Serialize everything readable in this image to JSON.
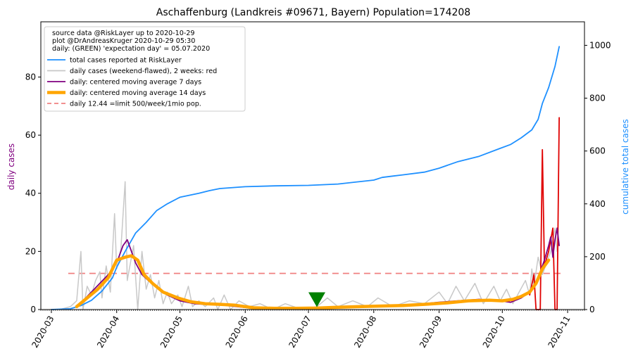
{
  "chart_data": {
    "type": "line",
    "title": "Aschaffenburg (Landkreis #09671, Bayern) Population=174208",
    "ylabel_left": "daily cases",
    "ylabel_right": "cumulative total cases",
    "ylabel_left_color": "#800080",
    "ylabel_right_color": "#1e90ff",
    "x_range": [
      "2020-02-25",
      "2020-11-09"
    ],
    "ylim_left": [
      0,
      99
    ],
    "ylim_right": [
      0,
      1089
    ],
    "yticks_left": [
      0,
      20,
      40,
      60,
      80
    ],
    "yticks_right": [
      0,
      200,
      400,
      600,
      800,
      1000
    ],
    "xticks": [
      "2020-03",
      "2020-04",
      "2020-05",
      "2020-06",
      "2020-07",
      "2020-08",
      "2020-09",
      "2020-10",
      "2020-11"
    ],
    "legend": {
      "position": "upper-left",
      "header": [
        "source data @RiskLayer up to 2020-10-29",
        "plot @DrAndreasKruger 2020-10-29 05:30",
        "daily: (GREEN) 'expectation day' = 05.07.2020"
      ],
      "entries": [
        {
          "label": "total cases reported at RiskLayer",
          "color": "#1e90ff",
          "style": "line"
        },
        {
          "label": "daily cases (weekend-flawed), 2 weeks: red",
          "color": "#c8c8c8",
          "style": "line"
        },
        {
          "label": "daily: centered moving average 7 days",
          "color": "#800080",
          "style": "line"
        },
        {
          "label": "daily: centered moving average 14 days",
          "color": "#ffa500",
          "style": "thick-line"
        },
        {
          "label": "daily 12.44 =limit 500/week/1mio pop.",
          "color": "#f08080",
          "style": "dashed"
        }
      ]
    },
    "limit_line": {
      "value": 12.44,
      "x_start": "2020-03-09",
      "x_end": "2020-10-29",
      "color": "#f08080"
    },
    "expectation_marker": {
      "date": "2020-07-05",
      "value": 3.5,
      "color": "#008000"
    },
    "series": [
      {
        "name": "total cases reported at RiskLayer",
        "axis": "right",
        "color": "#1e90ff",
        "points": [
          [
            "2020-03-01",
            0
          ],
          [
            "2020-03-10",
            3
          ],
          [
            "2020-03-15",
            15
          ],
          [
            "2020-03-20",
            35
          ],
          [
            "2020-03-25",
            70
          ],
          [
            "2020-03-30",
            120
          ],
          [
            "2020-04-01",
            160
          ],
          [
            "2020-04-05",
            220
          ],
          [
            "2020-04-10",
            290
          ],
          [
            "2020-04-15",
            330
          ],
          [
            "2020-04-20",
            375
          ],
          [
            "2020-04-25",
            400
          ],
          [
            "2020-05-01",
            425
          ],
          [
            "2020-05-10",
            440
          ],
          [
            "2020-05-15",
            450
          ],
          [
            "2020-05-20",
            458
          ],
          [
            "2020-06-01",
            465
          ],
          [
            "2020-06-15",
            468
          ],
          [
            "2020-07-01",
            470
          ],
          [
            "2020-07-15",
            475
          ],
          [
            "2020-08-01",
            490
          ],
          [
            "2020-08-05",
            500
          ],
          [
            "2020-08-10",
            505
          ],
          [
            "2020-08-15",
            510
          ],
          [
            "2020-08-25",
            520
          ],
          [
            "2020-09-01",
            535
          ],
          [
            "2020-09-10",
            560
          ],
          [
            "2020-09-20",
            580
          ],
          [
            "2020-09-30",
            610
          ],
          [
            "2020-10-05",
            625
          ],
          [
            "2020-10-10",
            650
          ],
          [
            "2020-10-15",
            680
          ],
          [
            "2020-10-18",
            720
          ],
          [
            "2020-10-20",
            780
          ],
          [
            "2020-10-23",
            840
          ],
          [
            "2020-10-26",
            920
          ],
          [
            "2020-10-28",
            995
          ]
        ]
      },
      {
        "name": "daily cases (weekend-flawed), 2 weeks: red",
        "axis": "left",
        "color": "#c8c8c8",
        "points": [
          [
            "2020-03-05",
            0
          ],
          [
            "2020-03-10",
            1
          ],
          [
            "2020-03-13",
            3
          ],
          [
            "2020-03-15",
            20
          ],
          [
            "2020-03-16",
            0
          ],
          [
            "2020-03-18",
            8
          ],
          [
            "2020-03-20",
            5
          ],
          [
            "2020-03-22",
            10
          ],
          [
            "2020-03-24",
            13
          ],
          [
            "2020-03-25",
            4
          ],
          [
            "2020-03-27",
            15
          ],
          [
            "2020-03-29",
            6
          ],
          [
            "2020-03-31",
            33
          ],
          [
            "2020-04-01",
            14
          ],
          [
            "2020-04-03",
            21
          ],
          [
            "2020-04-05",
            44
          ],
          [
            "2020-04-06",
            10
          ],
          [
            "2020-04-08",
            18
          ],
          [
            "2020-04-09",
            22
          ],
          [
            "2020-04-11",
            0
          ],
          [
            "2020-04-13",
            20
          ],
          [
            "2020-04-15",
            7
          ],
          [
            "2020-04-17",
            12
          ],
          [
            "2020-04-19",
            4
          ],
          [
            "2020-04-21",
            10
          ],
          [
            "2020-04-23",
            2
          ],
          [
            "2020-04-25",
            6
          ],
          [
            "2020-04-27",
            2
          ],
          [
            "2020-04-30",
            5
          ],
          [
            "2020-05-02",
            1
          ],
          [
            "2020-05-05",
            8
          ],
          [
            "2020-05-07",
            1
          ],
          [
            "2020-05-10",
            3
          ],
          [
            "2020-05-13",
            1
          ],
          [
            "2020-05-17",
            4
          ],
          [
            "2020-05-19",
            0
          ],
          [
            "2020-05-22",
            5
          ],
          [
            "2020-05-25",
            0
          ],
          [
            "2020-05-29",
            3
          ],
          [
            "2020-06-03",
            1
          ],
          [
            "2020-06-08",
            2
          ],
          [
            "2020-06-14",
            0
          ],
          [
            "2020-06-20",
            2
          ],
          [
            "2020-06-28",
            0
          ],
          [
            "2020-07-05",
            1
          ],
          [
            "2020-07-10",
            4
          ],
          [
            "2020-07-15",
            1
          ],
          [
            "2020-07-22",
            3
          ],
          [
            "2020-07-29",
            1
          ],
          [
            "2020-08-03",
            4
          ],
          [
            "2020-08-10",
            1
          ],
          [
            "2020-08-18",
            3
          ],
          [
            "2020-08-25",
            2
          ],
          [
            "2020-09-01",
            6
          ],
          [
            "2020-09-05",
            2
          ],
          [
            "2020-09-09",
            8
          ],
          [
            "2020-09-13",
            3
          ],
          [
            "2020-09-18",
            9
          ],
          [
            "2020-09-22",
            2
          ],
          [
            "2020-09-27",
            8
          ],
          [
            "2020-09-30",
            3
          ],
          [
            "2020-10-03",
            7
          ],
          [
            "2020-10-06",
            2
          ],
          [
            "2020-10-09",
            6
          ],
          [
            "2020-10-12",
            10
          ],
          [
            "2020-10-14",
            5
          ],
          [
            "2020-10-15",
            14
          ],
          [
            "2020-10-16",
            8
          ],
          [
            "2020-10-18",
            18
          ],
          [
            "2020-10-20",
            12
          ],
          [
            "2020-10-22",
            16
          ],
          [
            "2020-10-24",
            20
          ],
          [
            "2020-10-26",
            28
          ],
          [
            "2020-10-27",
            20
          ]
        ]
      },
      {
        "name": "daily cases, last 2 weeks",
        "axis": "left",
        "color": "#e00000",
        "points": [
          [
            "2020-10-14",
            5
          ],
          [
            "2020-10-16",
            12
          ],
          [
            "2020-10-17",
            0
          ],
          [
            "2020-10-19",
            0
          ],
          [
            "2020-10-20",
            55
          ],
          [
            "2020-10-21",
            15
          ],
          [
            "2020-10-23",
            20
          ],
          [
            "2020-10-25",
            28
          ],
          [
            "2020-10-26",
            0
          ],
          [
            "2020-10-27",
            0
          ],
          [
            "2020-10-28",
            66
          ]
        ]
      },
      {
        "name": "daily: centered moving average 7 days",
        "axis": "left",
        "color": "#800080",
        "points": [
          [
            "2020-03-13",
            1
          ],
          [
            "2020-03-16",
            3
          ],
          [
            "2020-03-20",
            6
          ],
          [
            "2020-03-24",
            9
          ],
          [
            "2020-03-28",
            12
          ],
          [
            "2020-03-31",
            15
          ],
          [
            "2020-04-02",
            18
          ],
          [
            "2020-04-04",
            22
          ],
          [
            "2020-04-06",
            24
          ],
          [
            "2020-04-08",
            20
          ],
          [
            "2020-04-10",
            16
          ],
          [
            "2020-04-13",
            12
          ],
          [
            "2020-04-16",
            10
          ],
          [
            "2020-04-20",
            8
          ],
          [
            "2020-04-25",
            5
          ],
          [
            "2020-05-01",
            3
          ],
          [
            "2020-05-08",
            2
          ],
          [
            "2020-05-15",
            1.7
          ],
          [
            "2020-05-22",
            1.5
          ],
          [
            "2020-06-01",
            0.7
          ],
          [
            "2020-06-10",
            0.5
          ],
          [
            "2020-06-20",
            0.4
          ],
          [
            "2020-07-01",
            0.5
          ],
          [
            "2020-07-10",
            0.7
          ],
          [
            "2020-07-20",
            1
          ],
          [
            "2020-08-01",
            1.2
          ],
          [
            "2020-08-15",
            1.5
          ],
          [
            "2020-08-25",
            2
          ],
          [
            "2020-09-01",
            2.5
          ],
          [
            "2020-09-10",
            3
          ],
          [
            "2020-09-20",
            3.5
          ],
          [
            "2020-09-30",
            3
          ],
          [
            "2020-10-05",
            2.5
          ],
          [
            "2020-10-10",
            4
          ],
          [
            "2020-10-14",
            6
          ],
          [
            "2020-10-17",
            9
          ],
          [
            "2020-10-19",
            13
          ],
          [
            "2020-10-21",
            17
          ],
          [
            "2020-10-23",
            22
          ],
          [
            "2020-10-24",
            25
          ],
          [
            "2020-10-25",
            18
          ],
          [
            "2020-10-26",
            24
          ],
          [
            "2020-10-27",
            28
          ],
          [
            "2020-10-28",
            22
          ]
        ]
      },
      {
        "name": "daily: centered moving average 14 days",
        "axis": "left",
        "color": "#ffa500",
        "points": [
          [
            "2020-03-13",
            1
          ],
          [
            "2020-03-18",
            4
          ],
          [
            "2020-03-23",
            7
          ],
          [
            "2020-03-28",
            11
          ],
          [
            "2020-04-01",
            17
          ],
          [
            "2020-04-05",
            18
          ],
          [
            "2020-04-08",
            18.5
          ],
          [
            "2020-04-11",
            17
          ],
          [
            "2020-04-14",
            12
          ],
          [
            "2020-04-18",
            9
          ],
          [
            "2020-04-23",
            6
          ],
          [
            "2020-04-30",
            4
          ],
          [
            "2020-05-06",
            2.7
          ],
          [
            "2020-05-13",
            2
          ],
          [
            "2020-05-20",
            1.8
          ],
          [
            "2020-05-27",
            1.5
          ],
          [
            "2020-06-05",
            0.6
          ],
          [
            "2020-06-15",
            0.4
          ],
          [
            "2020-06-25",
            0.4
          ],
          [
            "2020-07-05",
            0.5
          ],
          [
            "2020-07-15",
            0.8
          ],
          [
            "2020-07-25",
            1
          ],
          [
            "2020-08-05",
            1.2
          ],
          [
            "2020-08-15",
            1.4
          ],
          [
            "2020-08-25",
            1.8
          ],
          [
            "2020-09-05",
            2.3
          ],
          [
            "2020-09-15",
            3
          ],
          [
            "2020-09-25",
            3.2
          ],
          [
            "2020-10-01",
            3
          ],
          [
            "2020-10-06",
            3.5
          ],
          [
            "2020-10-10",
            4.5
          ],
          [
            "2020-10-14",
            6
          ],
          [
            "2020-10-17",
            9
          ],
          [
            "2020-10-20",
            14
          ],
          [
            "2020-10-23",
            17
          ]
        ]
      }
    ]
  }
}
